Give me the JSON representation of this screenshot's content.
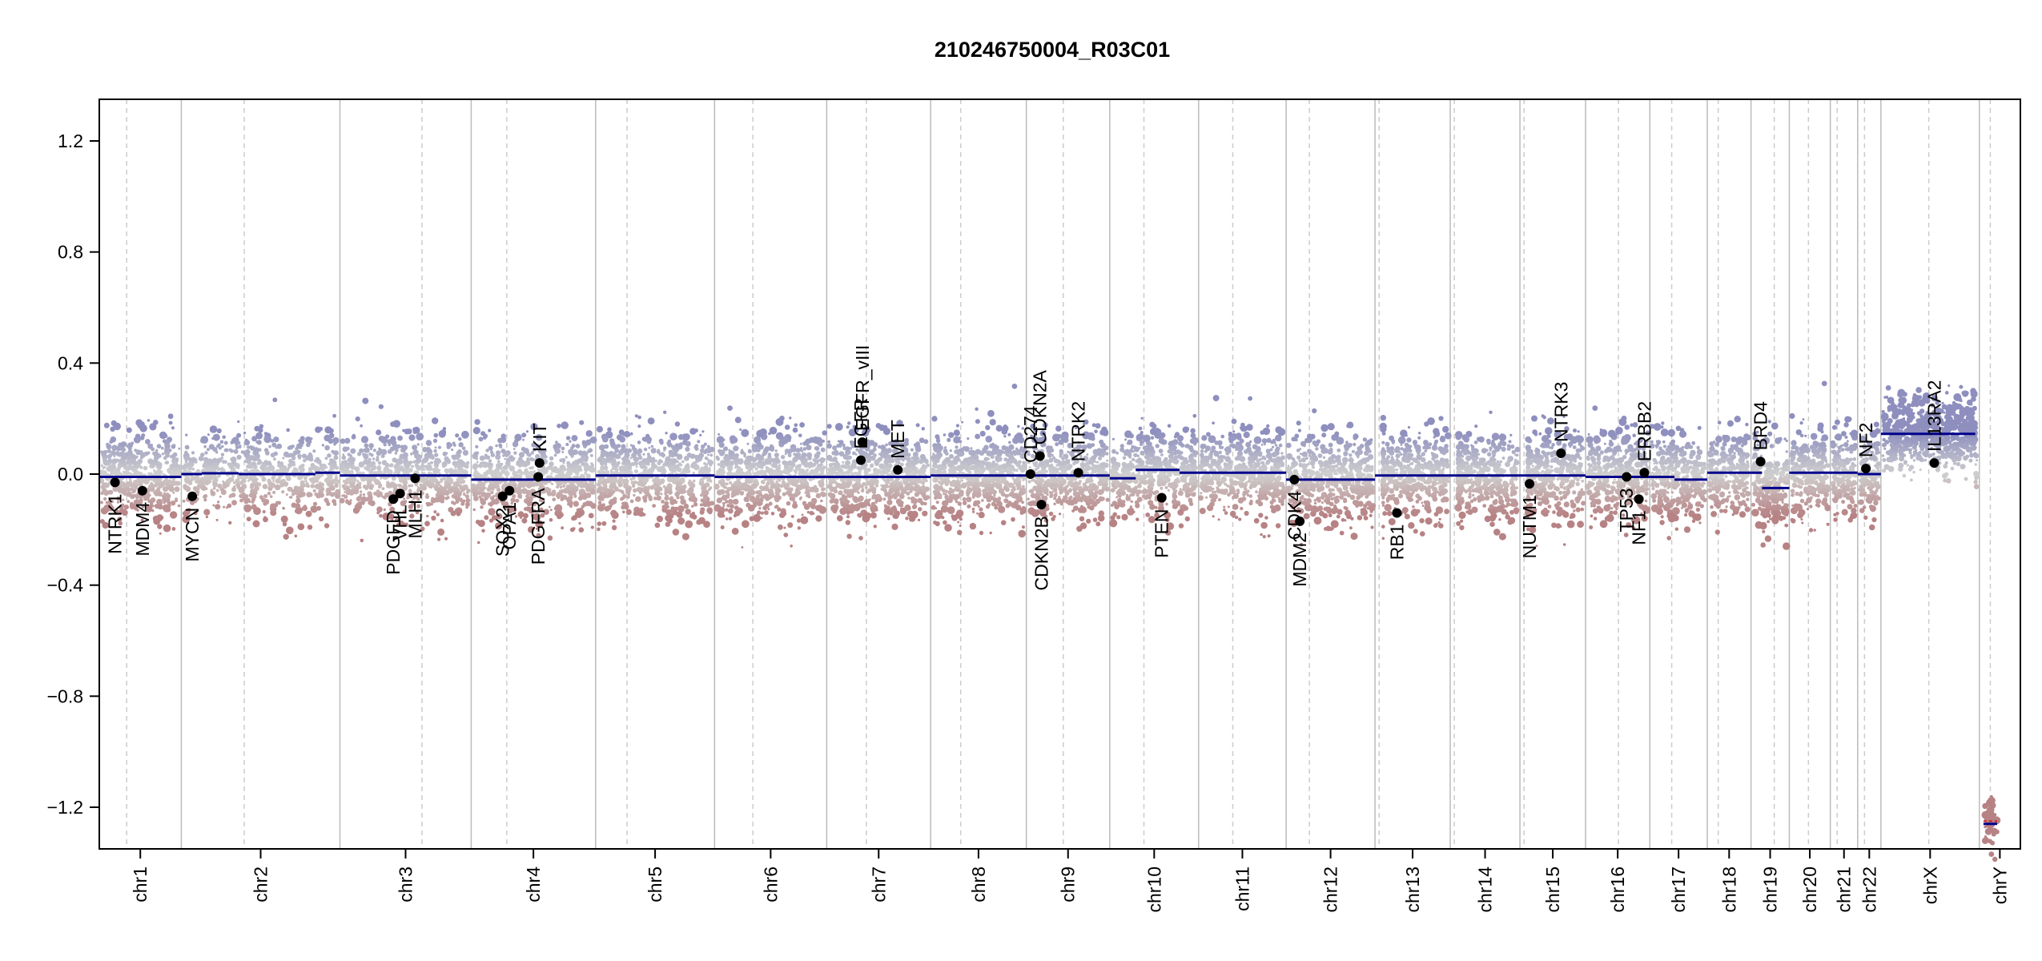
{
  "chart_data": {
    "type": "scatter",
    "title": "210246750004_R03C01",
    "xlabel": "",
    "ylabel": "",
    "ylim": [
      -1.35,
      1.35
    ],
    "yticks": [
      -1.2,
      -0.8,
      -0.4,
      0.0,
      0.4,
      0.8,
      1.2
    ],
    "ytick_labels": [
      "−1.2",
      "−0.8",
      "−0.4",
      "0.0",
      "0.4",
      "0.8",
      "1.2"
    ],
    "grid": false,
    "colors": {
      "gain": "#8e8fbe",
      "loss": "#b78284",
      "neutral": "#cfcfcf",
      "segment": "#00008b",
      "chrY_segment": "#cc2222",
      "boundary": "#bbbbbb",
      "centromere": "#cccccc",
      "gene_point": "#000000"
    },
    "chromosomes": [
      {
        "name": "chr1",
        "label": "chr1",
        "start": 0.0,
        "end": 6.0,
        "centromere": 2.0
      },
      {
        "name": "chr2",
        "label": "chr2",
        "start": 6.0,
        "end": 17.6,
        "centromere": 10.6
      },
      {
        "name": "chr3",
        "label": "chr3",
        "start": 17.6,
        "end": 27.2,
        "centromere": 23.6
      },
      {
        "name": "chr4",
        "label": "chr4",
        "start": 27.2,
        "end": 36.3,
        "centromere": 29.8
      },
      {
        "name": "chr5",
        "label": "chr5",
        "start": 36.3,
        "end": 45.0,
        "centromere": 38.6
      },
      {
        "name": "chr6",
        "label": "chr6",
        "start": 45.0,
        "end": 53.2,
        "centromere": 47.8
      },
      {
        "name": "chr7",
        "label": "chr7",
        "start": 53.2,
        "end": 60.8,
        "centromere": 56.1
      },
      {
        "name": "chr8",
        "label": "chr8",
        "start": 60.8,
        "end": 67.8,
        "centromere": 63.0
      },
      {
        "name": "chr9",
        "label": "chr9",
        "start": 67.8,
        "end": 73.9,
        "centromere": 70.5
      },
      {
        "name": "chr10",
        "label": "chr10",
        "start": 73.9,
        "end": 80.4,
        "centromere": 76.4
      },
      {
        "name": "chr11",
        "label": "chr11",
        "start": 80.4,
        "end": 86.8,
        "centromere": 82.9
      },
      {
        "name": "chr12",
        "label": "chr12",
        "start": 86.8,
        "end": 93.3,
        "centromere": 88.5
      },
      {
        "name": "chr13",
        "label": "chr13",
        "start": 93.3,
        "end": 98.8,
        "centromere": 93.6
      },
      {
        "name": "chr14",
        "label": "chr14",
        "start": 98.8,
        "end": 103.9,
        "centromere": 99.1
      },
      {
        "name": "chr15",
        "label": "chr15",
        "start": 103.9,
        "end": 108.7,
        "centromere": 104.2
      },
      {
        "name": "chr16",
        "label": "chr16",
        "start": 108.7,
        "end": 113.4,
        "centromere": 111.1
      },
      {
        "name": "chr17",
        "label": "chr17",
        "start": 113.4,
        "end": 117.6,
        "centromere": 115.0
      },
      {
        "name": "chr18",
        "label": "chr18",
        "start": 117.6,
        "end": 120.8,
        "centromere": 118.4
      },
      {
        "name": "chr19",
        "label": "chr19",
        "start": 120.8,
        "end": 123.6,
        "centromere": 122.5
      },
      {
        "name": "chr20",
        "label": "chr20",
        "start": 123.6,
        "end": 126.6,
        "centromere": 125.0
      },
      {
        "name": "chr21",
        "label": "chr21",
        "start": 126.6,
        "end": 128.6,
        "centromere": 127.1
      },
      {
        "name": "chr22",
        "label": "chr22",
        "start": 128.6,
        "end": 130.3,
        "centromere": 129.1
      },
      {
        "name": "chrX",
        "label": "chrX",
        "start": 130.3,
        "end": 137.5,
        "centromere": 133.8
      },
      {
        "name": "chrY",
        "label": "chrY",
        "start": 137.5,
        "end": 140.5,
        "centromere": 138.3
      }
    ],
    "segments": [
      {
        "chr": "chr1",
        "x0": 0.0,
        "x1": 6.0,
        "y": -0.01
      },
      {
        "chr": "chr2",
        "x0": 6.0,
        "x1": 7.5,
        "y": 0.0
      },
      {
        "chr": "chr2",
        "x0": 7.5,
        "x1": 10.2,
        "y": 0.003
      },
      {
        "chr": "chr2",
        "x0": 10.2,
        "x1": 15.8,
        "y": 0.0
      },
      {
        "chr": "chr2",
        "x0": 15.8,
        "x1": 17.6,
        "y": 0.005
      },
      {
        "chr": "chr3",
        "x0": 17.6,
        "x1": 27.2,
        "y": -0.005
      },
      {
        "chr": "chr4",
        "x0": 27.2,
        "x1": 36.3,
        "y": -0.02
      },
      {
        "chr": "chr5",
        "x0": 36.3,
        "x1": 45.0,
        "y": -0.005
      },
      {
        "chr": "chr6",
        "x0": 45.0,
        "x1": 53.2,
        "y": -0.01
      },
      {
        "chr": "chr7",
        "x0": 53.2,
        "x1": 60.8,
        "y": -0.01
      },
      {
        "chr": "chr8",
        "x0": 60.8,
        "x1": 67.8,
        "y": -0.005
      },
      {
        "chr": "chr9",
        "x0": 67.8,
        "x1": 73.9,
        "y": -0.005
      },
      {
        "chr": "chr10",
        "x0": 73.9,
        "x1": 75.8,
        "y": -0.015
      },
      {
        "chr": "chr10",
        "x0": 75.8,
        "x1": 79.0,
        "y": 0.015
      },
      {
        "chr": "chr10",
        "x0": 79.0,
        "x1": 80.4,
        "y": 0.005
      },
      {
        "chr": "chr11",
        "x0": 80.4,
        "x1": 86.8,
        "y": 0.005
      },
      {
        "chr": "chr12",
        "x0": 86.8,
        "x1": 93.3,
        "y": -0.02
      },
      {
        "chr": "chr13",
        "x0": 93.3,
        "x1": 98.8,
        "y": -0.005
      },
      {
        "chr": "chr14",
        "x0": 98.8,
        "x1": 103.9,
        "y": -0.005
      },
      {
        "chr": "chr15",
        "x0": 103.9,
        "x1": 108.7,
        "y": -0.005
      },
      {
        "chr": "chr16",
        "x0": 108.7,
        "x1": 113.4,
        "y": -0.01
      },
      {
        "chr": "chr17",
        "x0": 113.4,
        "x1": 115.2,
        "y": -0.01
      },
      {
        "chr": "chr17",
        "x0": 115.2,
        "x1": 117.6,
        "y": -0.02
      },
      {
        "chr": "chr18",
        "x0": 117.6,
        "x1": 120.8,
        "y": 0.005
      },
      {
        "chr": "chr19",
        "x0": 120.8,
        "x1": 121.6,
        "y": 0.005
      },
      {
        "chr": "chr19",
        "x0": 121.6,
        "x1": 123.6,
        "y": -0.05
      },
      {
        "chr": "chr20",
        "x0": 123.6,
        "x1": 126.6,
        "y": 0.005
      },
      {
        "chr": "chr21",
        "x0": 126.6,
        "x1": 128.6,
        "y": 0.005
      },
      {
        "chr": "chr22",
        "x0": 128.6,
        "x1": 130.3,
        "y": 0.0
      },
      {
        "chr": "chrX",
        "x0": 130.3,
        "x1": 137.2,
        "y": 0.145
      },
      {
        "chr": "chrY",
        "x0": 137.8,
        "x1": 138.8,
        "y": -1.26
      },
      {
        "chr": "chrY",
        "x0": 137.8,
        "x1": 138.8,
        "y": -1.25,
        "color": "red"
      }
    ],
    "genes": [
      {
        "name": "NTRK1",
        "x": 1.15,
        "y": -0.03,
        "label_side": "below"
      },
      {
        "name": "MDM4",
        "x": 3.15,
        "y": -0.06,
        "label_side": "below"
      },
      {
        "name": "MYCN",
        "x": 6.8,
        "y": -0.08,
        "label_side": "below"
      },
      {
        "name": "PDGFD",
        "x": 21.5,
        "y": -0.09,
        "label_side": "below"
      },
      {
        "name": "VHL",
        "x": 22.0,
        "y": -0.07,
        "label_side": "below"
      },
      {
        "name": "MLH1",
        "x": 23.1,
        "y": -0.015,
        "label_side": "below"
      },
      {
        "name": "SOX2",
        "x": 29.5,
        "y": -0.08,
        "label_side": "below"
      },
      {
        "name": "OPA1",
        "x": 30.0,
        "y": -0.06,
        "label_side": "below"
      },
      {
        "name": "PDGFRA",
        "x": 32.1,
        "y": -0.01,
        "label_side": "below"
      },
      {
        "name": "KIT",
        "x": 32.2,
        "y": 0.04,
        "label_side": "above"
      },
      {
        "name": "EGFR",
        "x": 55.7,
        "y": 0.05,
        "label_side": "above"
      },
      {
        "name": "EGFR_vIII",
        "x": 55.8,
        "y": 0.115,
        "label_side": "above"
      },
      {
        "name": "MET",
        "x": 58.4,
        "y": 0.015,
        "label_side": "above"
      },
      {
        "name": "CD274",
        "x": 68.1,
        "y": 0.0,
        "label_side": "above"
      },
      {
        "name": "CDKN2A",
        "x": 68.8,
        "y": 0.065,
        "label_side": "above"
      },
      {
        "name": "CDKN2B",
        "x": 68.9,
        "y": -0.11,
        "label_side": "below"
      },
      {
        "name": "NTRK2",
        "x": 71.6,
        "y": 0.005,
        "label_side": "above"
      },
      {
        "name": "PTEN",
        "x": 77.7,
        "y": -0.085,
        "label_side": "below"
      },
      {
        "name": "MDM2",
        "x": 87.8,
        "y": -0.17,
        "label_side": "below"
      },
      {
        "name": "CDK4",
        "x": 87.4,
        "y": -0.02,
        "label_side": "below"
      },
      {
        "name": "RB1",
        "x": 94.9,
        "y": -0.14,
        "label_side": "below"
      },
      {
        "name": "NUTM1",
        "x": 104.6,
        "y": -0.035,
        "label_side": "below"
      },
      {
        "name": "NTRK3",
        "x": 106.9,
        "y": 0.075,
        "label_side": "above"
      },
      {
        "name": "TP53",
        "x": 111.7,
        "y": -0.01,
        "label_side": "below"
      },
      {
        "name": "NF1",
        "x": 112.6,
        "y": -0.09,
        "label_side": "below"
      },
      {
        "name": "ERBB2",
        "x": 113.0,
        "y": 0.005,
        "label_side": "above"
      },
      {
        "name": "BRD4",
        "x": 121.5,
        "y": 0.045,
        "label_side": "above"
      },
      {
        "name": "NF2",
        "x": 129.2,
        "y": 0.02,
        "label_side": "above"
      },
      {
        "name": "IL13RA2",
        "x": 134.2,
        "y": 0.04,
        "label_side": "above"
      }
    ],
    "probe_points": {
      "note_free": true,
      "density_per_chrom": 520,
      "noise_sd": 0.075
    }
  }
}
